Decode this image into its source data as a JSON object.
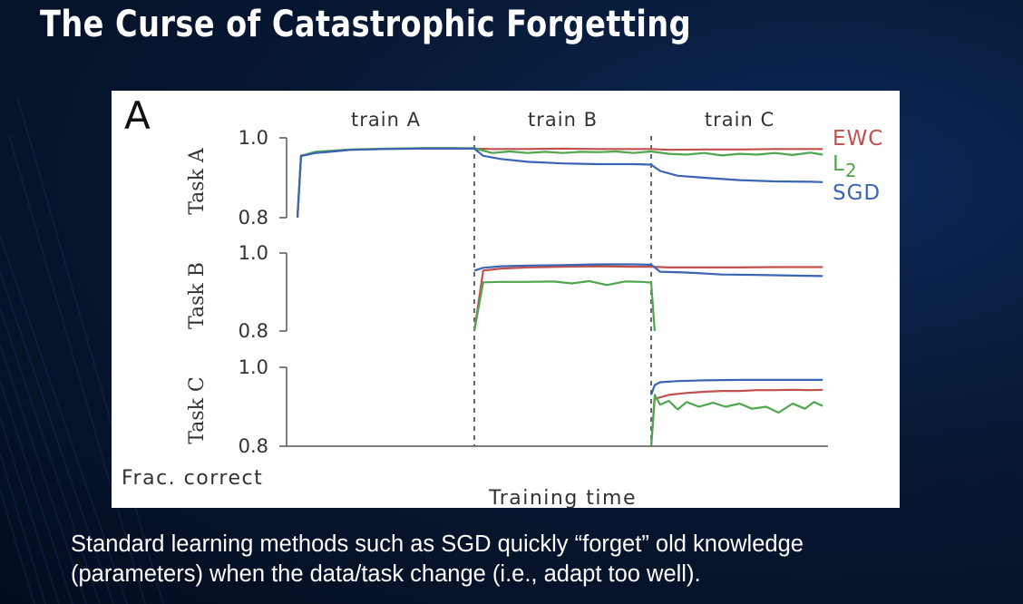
{
  "slide": {
    "title": "The Curse of Catastrophic Forgetting",
    "caption_lines": [
      "Standard learning methods such as SGD quickly “forget” old knowledge",
      "(parameters) when the data/task change (i.e., adapt too well)."
    ]
  },
  "chart_data": {
    "type": "line",
    "panel_label": "A",
    "xlabel": "Training time",
    "ylabel": "Frac. correct",
    "phases": [
      "train A",
      "train B",
      "train C"
    ],
    "x_range": [
      0,
      3
    ],
    "colors": {
      "EWC": "#c0504d",
      "L2": "#4ea64e",
      "SGD": "#3b65b4"
    },
    "legend": {
      "placement": "right",
      "entries": [
        {
          "key": "EWC",
          "text": "EWC"
        },
        {
          "key": "L2",
          "text": "L",
          "sub": "2"
        },
        {
          "key": "SGD",
          "text": "SGD"
        }
      ]
    },
    "subplots": [
      {
        "label": "Task A",
        "ylim": [
          0.8,
          1.0
        ],
        "yticks": [
          "1.0",
          "0.8"
        ],
        "series": [
          {
            "key": "EWC",
            "x": [
              0,
              0.02,
              0.1,
              0.2,
              0.3,
              0.5,
              0.7,
              0.9,
              1.0,
              1.1,
              1.3,
              1.5,
              1.7,
              1.9,
              2.0,
              2.1,
              2.3,
              2.5,
              2.7,
              2.9,
              2.97
            ],
            "y": [
              0.8,
              0.956,
              0.962,
              0.966,
              0.97,
              0.972,
              0.974,
              0.974,
              0.973,
              0.972,
              0.972,
              0.973,
              0.972,
              0.972,
              0.972,
              0.97,
              0.971,
              0.971,
              0.972,
              0.972,
              0.972
            ]
          },
          {
            "key": "L2",
            "x": [
              0,
              0.02,
              0.1,
              0.2,
              0.3,
              0.5,
              0.7,
              0.9,
              1.0,
              1.1,
              1.2,
              1.3,
              1.4,
              1.5,
              1.6,
              1.7,
              1.8,
              1.9,
              2.0,
              2.1,
              2.2,
              2.3,
              2.4,
              2.5,
              2.6,
              2.7,
              2.8,
              2.9,
              2.97
            ],
            "y": [
              0.8,
              0.955,
              0.965,
              0.968,
              0.971,
              0.973,
              0.974,
              0.974,
              0.974,
              0.962,
              0.966,
              0.962,
              0.965,
              0.962,
              0.965,
              0.964,
              0.966,
              0.962,
              0.966,
              0.96,
              0.958,
              0.962,
              0.956,
              0.96,
              0.958,
              0.962,
              0.957,
              0.963,
              0.958
            ]
          },
          {
            "key": "SGD",
            "x": [
              0,
              0.02,
              0.1,
              0.2,
              0.3,
              0.5,
              0.7,
              0.9,
              1.0,
              1.05,
              1.15,
              1.3,
              1.5,
              1.7,
              1.9,
              2.0,
              2.05,
              2.15,
              2.3,
              2.5,
              2.7,
              2.9,
              2.97
            ],
            "y": [
              0.8,
              0.954,
              0.962,
              0.966,
              0.97,
              0.972,
              0.973,
              0.973,
              0.973,
              0.955,
              0.947,
              0.94,
              0.936,
              0.934,
              0.934,
              0.933,
              0.917,
              0.905,
              0.9,
              0.894,
              0.891,
              0.89,
              0.889
            ]
          }
        ]
      },
      {
        "label": "Task B",
        "ylim": [
          0.8,
          1.0
        ],
        "yticks": [
          "1.0",
          "0.8"
        ],
        "series": [
          {
            "key": "EWC",
            "x": [
              1.0,
              1.05,
              1.15,
              1.3,
              1.5,
              1.7,
              1.9,
              2.0,
              2.1,
              2.3,
              2.5,
              2.7,
              2.97
            ],
            "y": [
              0.8,
              0.955,
              0.96,
              0.963,
              0.965,
              0.966,
              0.965,
              0.965,
              0.963,
              0.963,
              0.963,
              0.964,
              0.964
            ]
          },
          {
            "key": "L2",
            "x": [
              1.0,
              1.05,
              1.15,
              1.3,
              1.45,
              1.55,
              1.65,
              1.75,
              1.85,
              1.95,
              2.0,
              2.02
            ],
            "y": [
              0.8,
              0.925,
              0.926,
              0.926,
              0.927,
              0.922,
              0.928,
              0.918,
              0.927,
              0.926,
              0.924,
              0.8
            ]
          },
          {
            "key": "SGD",
            "x": [
              1.0,
              1.05,
              1.15,
              1.3,
              1.5,
              1.7,
              1.9,
              2.0,
              2.05,
              2.2,
              2.4,
              2.6,
              2.8,
              2.97
            ],
            "y": [
              0.955,
              0.962,
              0.966,
              0.968,
              0.969,
              0.971,
              0.971,
              0.97,
              0.952,
              0.95,
              0.945,
              0.944,
              0.942,
              0.941
            ]
          }
        ]
      },
      {
        "label": "Task C",
        "ylim": [
          0.8,
          1.0
        ],
        "yticks": [
          "1.0",
          "0.8"
        ],
        "series": [
          {
            "key": "EWC",
            "x": [
              2.0,
              2.02,
              2.1,
              2.2,
              2.3,
              2.4,
              2.5,
              2.6,
              2.7,
              2.8,
              2.9,
              2.97
            ],
            "y": [
              0.8,
              0.92,
              0.93,
              0.935,
              0.938,
              0.94,
              0.94,
              0.942,
              0.942,
              0.943,
              0.942,
              0.943
            ]
          },
          {
            "key": "L2",
            "x": [
              2.0,
              2.02,
              2.05,
              2.1,
              2.15,
              2.2,
              2.27,
              2.35,
              2.42,
              2.5,
              2.57,
              2.65,
              2.72,
              2.8,
              2.87,
              2.92,
              2.97
            ],
            "y": [
              0.8,
              0.93,
              0.905,
              0.915,
              0.893,
              0.912,
              0.9,
              0.91,
              0.9,
              0.908,
              0.895,
              0.9,
              0.885,
              0.908,
              0.895,
              0.912,
              0.902
            ]
          },
          {
            "key": "SGD",
            "x": [
              2.0,
              2.02,
              2.05,
              2.15,
              2.3,
              2.5,
              2.7,
              2.9,
              2.97
            ],
            "y": [
              0.93,
              0.955,
              0.962,
              0.965,
              0.967,
              0.968,
              0.968,
              0.968,
              0.968
            ]
          }
        ]
      }
    ]
  }
}
